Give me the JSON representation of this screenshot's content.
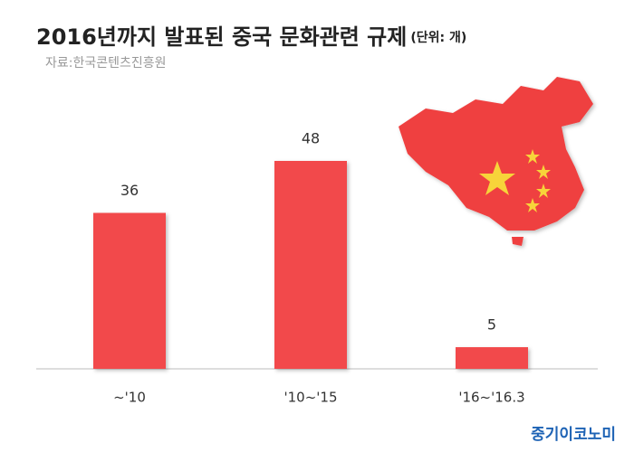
{
  "chart_data": {
    "type": "bar",
    "title": "2016년까지 발표된 중국 문화관련 규제",
    "unit": "(단위: 개)",
    "source": "자료:한국콘텐츠진흥원",
    "logo": "중기이코노미",
    "categories": [
      "~'10",
      "'10~'15",
      "'16~'16.3"
    ],
    "values": [
      36,
      48,
      5
    ],
    "color": "#f24a4c"
  }
}
